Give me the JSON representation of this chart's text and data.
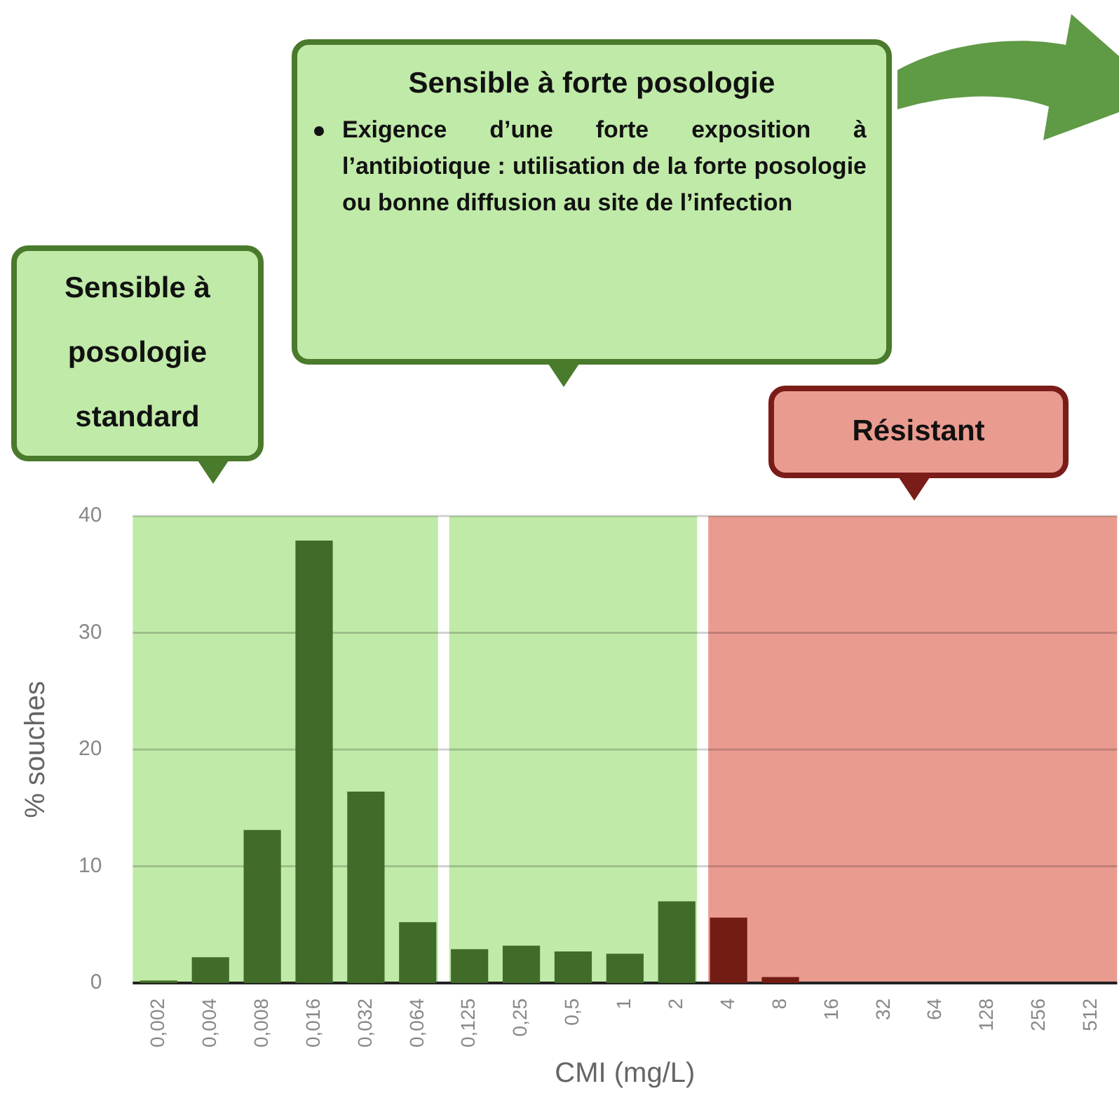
{
  "chart_data": {
    "type": "bar",
    "xlabel": "CMI (mg/L)",
    "ylabel": "% souches",
    "categories": [
      "0,002",
      "0,004",
      "0,008",
      "0,016",
      "0,032",
      "0,064",
      "0,125",
      "0,25",
      "0,5",
      "1",
      "2",
      "4",
      "8",
      "16",
      "32",
      "64",
      "128",
      "256",
      "512"
    ],
    "values": [
      0.2,
      2.2,
      13.1,
      37.9,
      16.4,
      5.2,
      2.9,
      3.2,
      2.7,
      2.5,
      7.0,
      5.6,
      0.5,
      0,
      0,
      0,
      0,
      0,
      0
    ],
    "colors": [
      "#406b28",
      "#406b28",
      "#406b28",
      "#406b28",
      "#406b28",
      "#406b28",
      "#406b28",
      "#406b28",
      "#406b28",
      "#406b28",
      "#406b28",
      "#731c14",
      "#731c14",
      "#731c14",
      "#731c14",
      "#731c14",
      "#731c14",
      "#731c14",
      "#731c14"
    ],
    "ylim": [
      0,
      40
    ],
    "yticks": [
      0,
      10,
      20,
      30,
      40
    ],
    "grid": "y",
    "legend": false,
    "bands": [
      {
        "axis": "x",
        "from": "0,002",
        "to": "0,064",
        "color": "#c0eaa8"
      },
      {
        "axis": "x",
        "from": "0,125",
        "to": "2",
        "color": "#c0eaa8"
      },
      {
        "axis": "x",
        "from": "4",
        "to": "512",
        "color": "#ea9b90"
      }
    ],
    "annotations": [
      "Sensible à posologie standard",
      "Sensible à forte posologie",
      "Exigence d’une forte exposition à l’antibiotique : utilisation de la forte posologie ou bonne diffusion au site de l’infection",
      "Résistant"
    ]
  }
}
